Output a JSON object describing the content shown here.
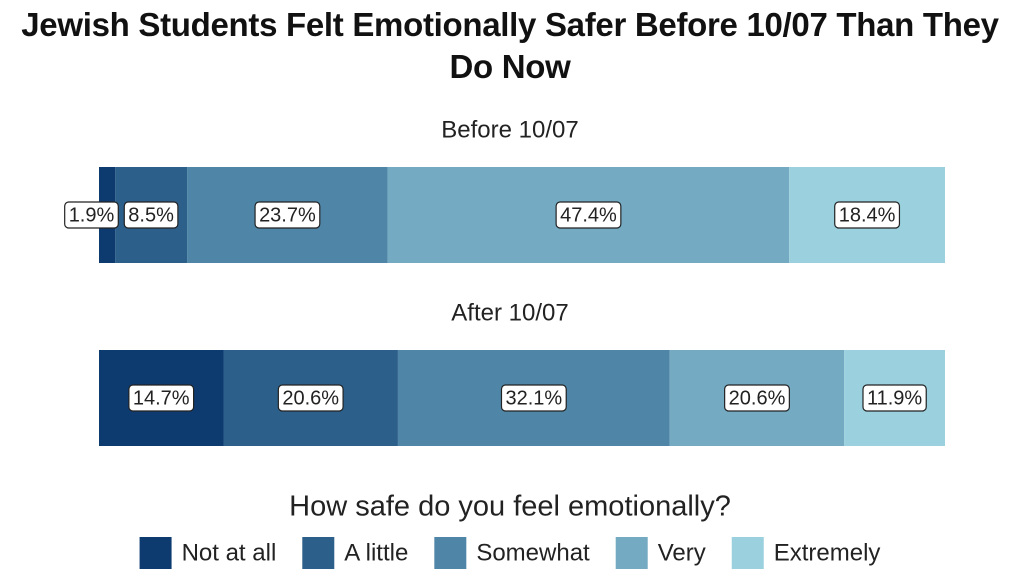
{
  "chart_data": {
    "type": "bar",
    "orientation": "horizontal",
    "stacked": true,
    "title": "Jewish Students Felt Emotionally Safer Before 10/07 Than They Do Now",
    "categories": [
      "Before 10/07",
      "After 10/07"
    ],
    "legend_title": "How safe do you feel emotionally?",
    "legend_position": "bottom",
    "series": [
      {
        "name": "Not at all",
        "color": "#0d3b70",
        "values": [
          1.9,
          14.7
        ],
        "value_labels": [
          "1.9%",
          "14.7%"
        ]
      },
      {
        "name": "A little",
        "color": "#2d5f8b",
        "values": [
          8.5,
          20.6
        ],
        "value_labels": [
          "8.5%",
          "20.6%"
        ]
      },
      {
        "name": "Somewhat",
        "color": "#4f86a7",
        "values": [
          23.7,
          32.1
        ],
        "value_labels": [
          "23.7%",
          "32.1%"
        ]
      },
      {
        "name": "Very",
        "color": "#74abc2",
        "values": [
          47.4,
          20.6
        ],
        "value_labels": [
          "47.4%",
          "20.6%"
        ]
      },
      {
        "name": "Extremely",
        "color": "#9bd0de",
        "values": [
          18.4,
          11.9
        ],
        "value_labels": [
          "18.4%",
          "11.9%"
        ]
      }
    ]
  }
}
